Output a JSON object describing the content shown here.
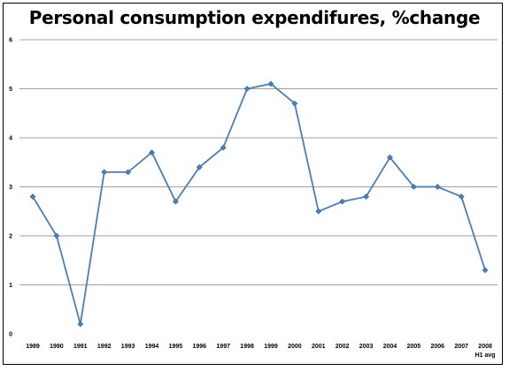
{
  "chart_data": {
    "type": "line",
    "title": "Personal consumption expendifures, %change",
    "x": [
      "1989",
      "1990",
      "1991",
      "1992",
      "1993",
      "1994",
      "1995",
      "1996",
      "1997",
      "1998",
      "1999",
      "2000",
      "2001",
      "2002",
      "2003",
      "2004",
      "2005",
      "2006",
      "2007",
      "2008"
    ],
    "x_note": "H1 avg",
    "series": [
      {
        "values": [
          2.8,
          2.0,
          0.2,
          3.3,
          3.3,
          3.7,
          2.7,
          3.4,
          3.8,
          5.0,
          5.1,
          4.7,
          2.5,
          2.7,
          2.8,
          3.6,
          3.0,
          3.0,
          2.8,
          1.3
        ]
      }
    ],
    "ylim": [
      0,
      6
    ],
    "yticks": [
      0,
      1,
      2,
      3,
      4,
      5,
      6
    ],
    "grid": true,
    "legend": "none",
    "line_color": "#4a7ebb",
    "marker_color": "#4a7ebb",
    "grid_color": "#808080"
  }
}
